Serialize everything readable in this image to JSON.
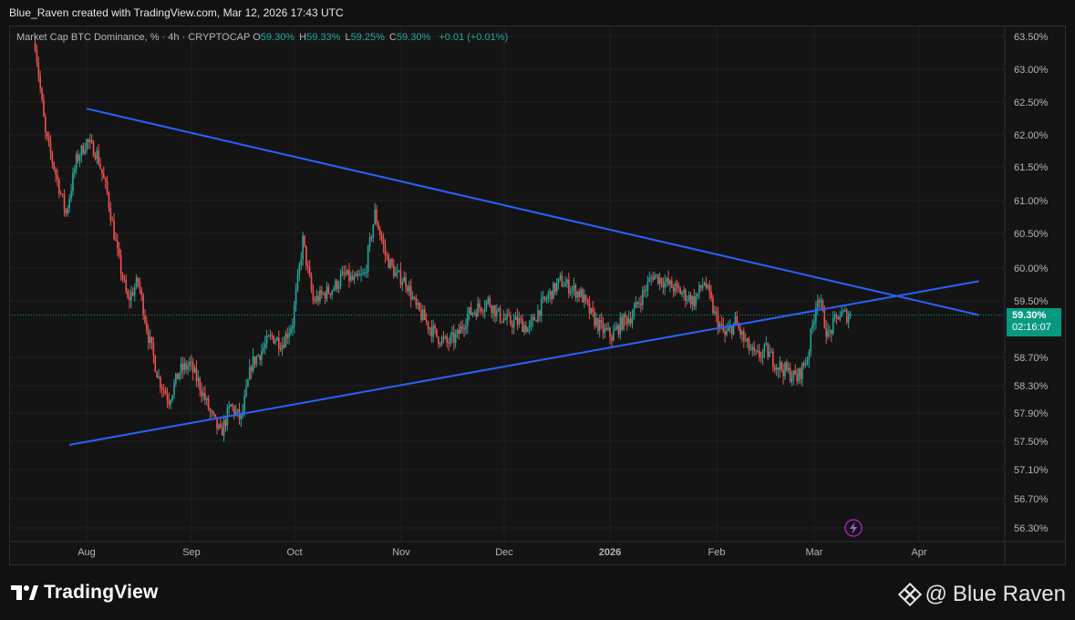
{
  "header": {
    "credit": "Blue_Raven created with TradingView.com, Mar 12, 2026 17:43 UTC"
  },
  "legend": {
    "title": "Market Cap BTC Dominance, % · 4h · CRYPTOCAP",
    "o_label": "O",
    "o_value": "59.30%",
    "h_label": "H",
    "h_value": "59.33%",
    "l_label": "L",
    "l_value": "59.25%",
    "c_label": "C",
    "c_value": "59.30%",
    "change": "+0.01 (+0.01%)"
  },
  "price_tag": {
    "price": "59.30%",
    "countdown": "02:16:07"
  },
  "footer": {
    "brand": "TradingView",
    "watermark_author": "Blue Raven",
    "watermark_at": "@"
  },
  "icons": [
    "tradingview-logo-icon",
    "binance-logo-icon",
    "lightning-icon"
  ],
  "colors": {
    "up": "#26a69a",
    "down": "#ef5350",
    "trendline": "#2962ff",
    "price_line": "#089981"
  },
  "chart_data": {
    "type": "candlestick",
    "title": "Market Cap BTC Dominance, % · 4h · CRYPTOCAP",
    "y_unit": "%",
    "y_ticks": [
      "63.50%",
      "63.00%",
      "62.50%",
      "62.00%",
      "61.50%",
      "61.00%",
      "60.50%",
      "60.00%",
      "59.50%",
      "58.70%",
      "58.30%",
      "57.90%",
      "57.50%",
      "57.10%",
      "56.70%",
      "56.30%"
    ],
    "x_ticks": [
      "Aug",
      "Sep",
      "Oct",
      "Nov",
      "Dec",
      "2026",
      "Feb",
      "Mar",
      "Apr"
    ],
    "last_price": 59.3,
    "series": [
      {
        "type": "price-path",
        "x": [
          "Jul 17",
          "Jul 20",
          "Jul 23",
          "Jul 26",
          "Jul 29",
          "Aug 1",
          "Aug 4",
          "Aug 7",
          "Aug 10",
          "Aug 13",
          "Aug 16",
          "Aug 19",
          "Aug 22",
          "Aug 25",
          "Aug 28",
          "Aug 31",
          "Sep 3",
          "Sep 6",
          "Sep 9",
          "Sep 12",
          "Sep 15",
          "Sep 18",
          "Sep 21",
          "Sep 24",
          "Sep 27",
          "Sep 30",
          "Oct 3",
          "Oct 6",
          "Oct 9",
          "Oct 12",
          "Oct 15",
          "Oct 18",
          "Oct 21",
          "Oct 24",
          "Oct 27",
          "Oct 30",
          "Nov 2",
          "Nov 5",
          "Nov 8",
          "Nov 11",
          "Nov 14",
          "Nov 17",
          "Nov 20",
          "Nov 23",
          "Nov 26",
          "Nov 29",
          "Dec 2",
          "Dec 5",
          "Dec 8",
          "Dec 11",
          "Dec 14",
          "Dec 17",
          "Dec 20",
          "Dec 23",
          "Dec 26",
          "Dec 29",
          "Jan 1",
          "Jan 4",
          "Jan 7",
          "Jan 10",
          "Jan 13",
          "Jan 16",
          "Jan 19",
          "Jan 22",
          "Jan 25",
          "Jan 28",
          "Jan 31",
          "Feb 3",
          "Feb 6",
          "Feb 9",
          "Feb 12",
          "Feb 15",
          "Feb 18",
          "Feb 21",
          "Feb 24",
          "Feb 27",
          "Mar 2",
          "Mar 5",
          "Mar 8",
          "Mar 11"
        ],
        "values": [
          63.4,
          62.0,
          61.4,
          60.8,
          61.6,
          61.9,
          61.7,
          61.1,
          60.2,
          59.5,
          59.8,
          59.0,
          58.4,
          58.1,
          58.5,
          58.6,
          58.3,
          57.9,
          57.6,
          58.0,
          57.8,
          58.6,
          58.8,
          59.0,
          58.9,
          59.2,
          60.4,
          59.5,
          59.6,
          59.7,
          59.9,
          59.8,
          59.9,
          60.8,
          60.2,
          59.9,
          59.8,
          59.4,
          59.2,
          59.0,
          58.9,
          59.0,
          59.3,
          59.4,
          59.5,
          59.3,
          59.2,
          59.2,
          59.1,
          59.4,
          59.6,
          59.8,
          59.7,
          59.6,
          59.3,
          59.1,
          59.0,
          59.2,
          59.3,
          59.6,
          59.9,
          59.8,
          59.7,
          59.6,
          59.5,
          59.8,
          59.3,
          59.0,
          59.2,
          58.9,
          58.7,
          58.8,
          58.6,
          58.5,
          58.4,
          58.7,
          59.6,
          59.0,
          59.3,
          59.3
        ]
      },
      {
        "type": "trendline",
        "name": "",
        "x": [
          "Aug 1",
          "Apr 18"
        ],
        "values": [
          62.4,
          59.3
        ]
      },
      {
        "type": "trendline",
        "name": "",
        "x": [
          "Jul 27",
          "Apr 18"
        ],
        "values": [
          57.45,
          59.8
        ]
      }
    ],
    "grid": true
  }
}
